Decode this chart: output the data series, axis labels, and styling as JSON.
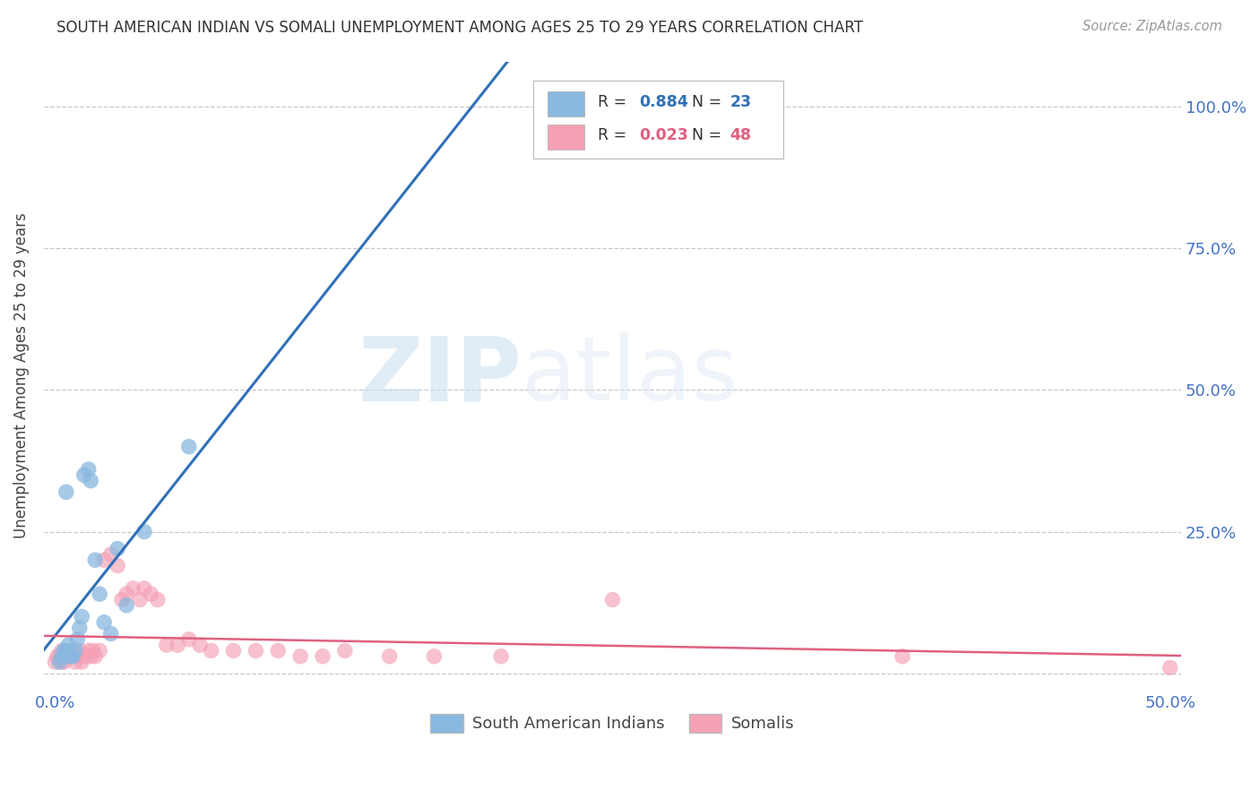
{
  "title": "SOUTH AMERICAN INDIAN VS SOMALI UNEMPLOYMENT AMONG AGES 25 TO 29 YEARS CORRELATION CHART",
  "source": "Source: ZipAtlas.com",
  "ylabel": "Unemployment Among Ages 25 to 29 years",
  "xlim": [
    -0.005,
    0.505
  ],
  "ylim": [
    -0.03,
    1.08
  ],
  "xticks": [
    0.0,
    0.1,
    0.2,
    0.3,
    0.4,
    0.5
  ],
  "xticklabels": [
    "0.0%",
    "",
    "",
    "",
    "",
    "50.0%"
  ],
  "yticks": [
    0.0,
    0.25,
    0.5,
    0.75,
    1.0
  ],
  "ylabels_left": [
    "",
    "",
    "",
    "",
    ""
  ],
  "ylabels_right": [
    "",
    "25.0%",
    "50.0%",
    "75.0%",
    "100.0%"
  ],
  "blue_color": "#89b8e0",
  "pink_color": "#f4a0b5",
  "blue_line_color": "#3070b8",
  "pink_line_color": "#e06080",
  "legend_label1": "South American Indians",
  "legend_label2": "Somalis",
  "watermark_zip": "ZIP",
  "watermark_atlas": "atlas",
  "background_color": "#ffffff",
  "tick_color": "#4472c4",
  "blue_x": [
    0.002,
    0.003,
    0.004,
    0.005,
    0.005,
    0.006,
    0.007,
    0.008,
    0.009,
    0.01,
    0.011,
    0.012,
    0.013,
    0.015,
    0.016,
    0.018,
    0.02,
    0.022,
    0.025,
    0.028,
    0.032,
    0.04,
    0.06
  ],
  "blue_y": [
    0.02,
    0.03,
    0.04,
    0.32,
    0.04,
    0.05,
    0.03,
    0.03,
    0.04,
    0.06,
    0.08,
    0.1,
    0.35,
    0.36,
    0.34,
    0.2,
    0.14,
    0.09,
    0.07,
    0.22,
    0.12,
    0.25,
    0.4
  ],
  "pink_x": [
    0.0,
    0.001,
    0.002,
    0.003,
    0.003,
    0.004,
    0.005,
    0.005,
    0.006,
    0.007,
    0.008,
    0.009,
    0.01,
    0.011,
    0.012,
    0.013,
    0.015,
    0.016,
    0.017,
    0.018,
    0.02,
    0.022,
    0.025,
    0.028,
    0.03,
    0.032,
    0.035,
    0.038,
    0.04,
    0.043,
    0.046,
    0.05,
    0.055,
    0.06,
    0.065,
    0.07,
    0.08,
    0.09,
    0.1,
    0.11,
    0.12,
    0.13,
    0.15,
    0.17,
    0.2,
    0.25,
    0.38,
    0.5
  ],
  "pink_y": [
    0.02,
    0.03,
    0.03,
    0.04,
    0.02,
    0.02,
    0.03,
    0.04,
    0.03,
    0.03,
    0.04,
    0.02,
    0.03,
    0.04,
    0.02,
    0.03,
    0.04,
    0.03,
    0.04,
    0.03,
    0.04,
    0.2,
    0.21,
    0.19,
    0.13,
    0.14,
    0.15,
    0.13,
    0.15,
    0.14,
    0.13,
    0.05,
    0.05,
    0.06,
    0.05,
    0.04,
    0.04,
    0.04,
    0.04,
    0.03,
    0.03,
    0.04,
    0.03,
    0.03,
    0.03,
    0.13,
    0.03,
    0.01
  ]
}
